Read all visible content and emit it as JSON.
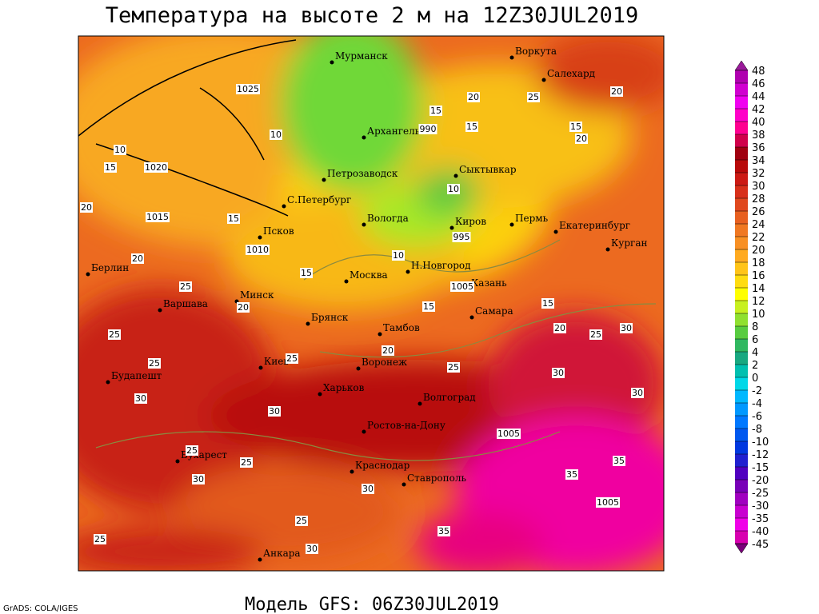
{
  "title": "Температура на высоте 2 м на 12Z30JUL2019",
  "subtitle": "Модель GFS: 06Z30JUL2019",
  "credit": "GrADS: COLA/IGES",
  "cities": [
    "Мурманск",
    "Воркута",
    "Салехард",
    "Архангельск",
    "Сыктывкар",
    "Петрозаводск",
    "С.Петербург",
    "Вологда",
    "Киров",
    "Пермь",
    "Екатеринбург",
    "Курган",
    "Псков",
    "Берлин",
    "Москва",
    "Н.Новгород",
    "Казань",
    "Варшава",
    "Минск",
    "Брянск",
    "Самара",
    "Тамбов",
    "Воронеж",
    "Киев",
    "Будапешт",
    "Харьков",
    "Волгоград",
    "Ростов-на-Дону",
    "Бухарест",
    "Краснодар",
    "Ставрополь",
    "Анкара"
  ],
  "contour_labels": [
    1025,
    1020,
    1015,
    1010,
    990,
    995,
    1005,
    1005,
    1005,
    15,
    15,
    20,
    25,
    20,
    15,
    20,
    10,
    10,
    15,
    20,
    15,
    10,
    10,
    15,
    15,
    15,
    20,
    20,
    25,
    30,
    30,
    30,
    35,
    35,
    35,
    30,
    30,
    25,
    25,
    25,
    25,
    25,
    25,
    25,
    30,
    30,
    30,
    20,
    25,
    20,
    25
  ],
  "colorbar": {
    "levels": [
      48,
      46,
      44,
      42,
      40,
      38,
      36,
      34,
      32,
      30,
      28,
      26,
      24,
      22,
      20,
      18,
      16,
      14,
      12,
      10,
      8,
      6,
      4,
      2,
      0,
      -2,
      -4,
      -6,
      -8,
      -10,
      -12,
      -15,
      -20,
      -25,
      -30,
      -35,
      -40,
      -45
    ],
    "colors": [
      "#9a1a9a",
      "#b000b0",
      "#d000d0",
      "#f000f0",
      "#ff00c8",
      "#ff0090",
      "#d0004a",
      "#a00010",
      "#b80a0a",
      "#cc1a14",
      "#d8301a",
      "#e0481e",
      "#e86020",
      "#f07822",
      "#f89024",
      "#ffaa20",
      "#ffc418",
      "#ffdc10",
      "#ffff00",
      "#c8f020",
      "#90e030",
      "#58cc40",
      "#30b860",
      "#18a880",
      "#00c0b0",
      "#00d8e8",
      "#00b8ff",
      "#0098ff",
      "#0078ff",
      "#0058f0",
      "#0038e0",
      "#2020d0",
      "#5000c0",
      "#7800b8",
      "#a000c0",
      "#c800d0",
      "#f000e8",
      "#d800b0",
      "#7a007a"
    ]
  }
}
